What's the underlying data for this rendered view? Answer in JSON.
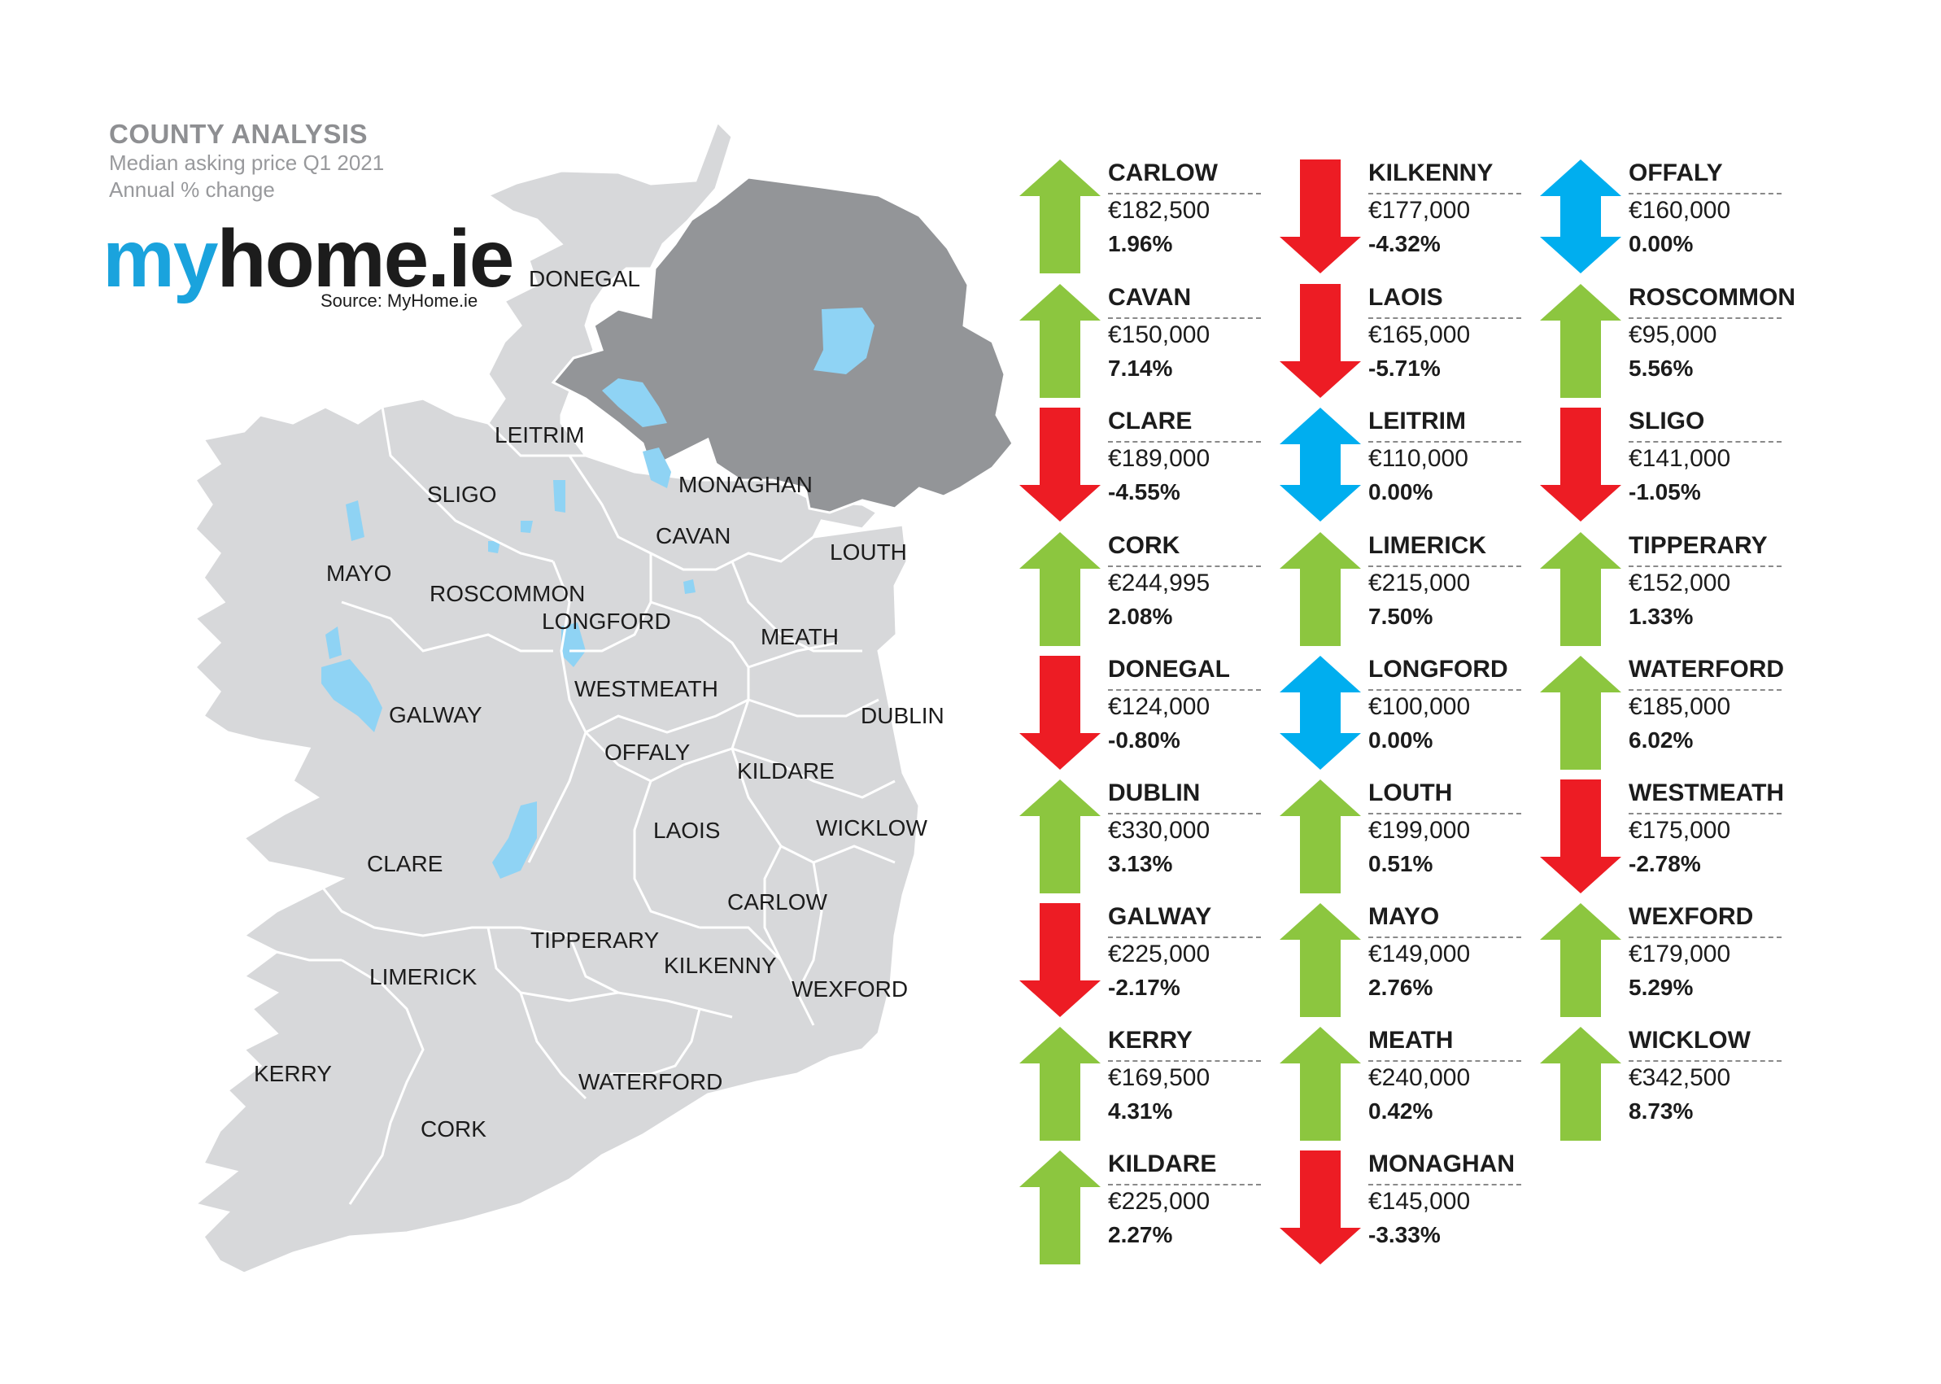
{
  "header": {
    "title": "COUNTY ANALYSIS",
    "subtitle1": "Median asking price Q1 2021",
    "subtitle2": "Annual % change"
  },
  "logo": {
    "my": "my",
    "home": "home",
    "ie": ".ie",
    "source": "Source: MyHome.ie"
  },
  "colors": {
    "up": "#8cc63f",
    "down": "#ed1c24",
    "flat": "#00aeef",
    "land": "#d7d8da",
    "northern_ireland": "#939598",
    "water": "#8fd3f4",
    "border": "#ffffff"
  },
  "map_labels": [
    "DONEGAL",
    "LEITRIM",
    "MONAGHAN",
    "SLIGO",
    "CAVAN",
    "LOUTH",
    "MAYO",
    "ROSCOMMON",
    "LONGFORD",
    "MEATH",
    "WESTMEATH",
    "GALWAY",
    "DUBLIN",
    "OFFALY",
    "KILDARE",
    "CLARE",
    "LAOIS",
    "WICKLOW",
    "CARLOW",
    "TIPPERARY",
    "LIMERICK",
    "KILKENNY",
    "WEXFORD",
    "KERRY",
    "WATERFORD",
    "CORK"
  ],
  "counties": [
    {
      "name": "CARLOW",
      "price": "€182,500",
      "change": "1.96%",
      "trend": "up"
    },
    {
      "name": "CAVAN",
      "price": "€150,000",
      "change": "7.14%",
      "trend": "up"
    },
    {
      "name": "CLARE",
      "price": "€189,000",
      "change": "-4.55%",
      "trend": "down"
    },
    {
      "name": "CORK",
      "price": "€244,995",
      "change": "2.08%",
      "trend": "up"
    },
    {
      "name": "DONEGAL",
      "price": "€124,000",
      "change": "-0.80%",
      "trend": "down"
    },
    {
      "name": "DUBLIN",
      "price": "€330,000",
      "change": "3.13%",
      "trend": "up"
    },
    {
      "name": "GALWAY",
      "price": "€225,000",
      "change": "-2.17%",
      "trend": "down"
    },
    {
      "name": "KERRY",
      "price": "€169,500",
      "change": "4.31%",
      "trend": "up"
    },
    {
      "name": "KILDARE",
      "price": "€225,000",
      "change": "2.27%",
      "trend": "up"
    },
    {
      "name": "KILKENNY",
      "price": "€177,000",
      "change": "-4.32%",
      "trend": "down"
    },
    {
      "name": "LAOIS",
      "price": "€165,000",
      "change": "-5.71%",
      "trend": "down"
    },
    {
      "name": "LEITRIM",
      "price": "€110,000",
      "change": "0.00%",
      "trend": "flat"
    },
    {
      "name": "LIMERICK",
      "price": "€215,000",
      "change": "7.50%",
      "trend": "up"
    },
    {
      "name": "LONGFORD",
      "price": "€100,000",
      "change": "0.00%",
      "trend": "flat"
    },
    {
      "name": "LOUTH",
      "price": "€199,000",
      "change": "0.51%",
      "trend": "up"
    },
    {
      "name": "MAYO",
      "price": "€149,000",
      "change": "2.76%",
      "trend": "up"
    },
    {
      "name": "MEATH",
      "price": "€240,000",
      "change": "0.42%",
      "trend": "up"
    },
    {
      "name": "MONAGHAN",
      "price": "€145,000",
      "change": "-3.33%",
      "trend": "down"
    },
    {
      "name": "OFFALY",
      "price": "€160,000",
      "change": "0.00%",
      "trend": "flat"
    },
    {
      "name": "ROSCOMMON",
      "price": "€95,000",
      "change": "5.56%",
      "trend": "up"
    },
    {
      "name": "SLIGO",
      "price": "€141,000",
      "change": "-1.05%",
      "trend": "down"
    },
    {
      "name": "TIPPERARY",
      "price": "€152,000",
      "change": "1.33%",
      "trend": "up"
    },
    {
      "name": "WATERFORD",
      "price": "€185,000",
      "change": "6.02%",
      "trend": "up"
    },
    {
      "name": "WESTMEATH",
      "price": "€175,000",
      "change": "-2.78%",
      "trend": "down"
    },
    {
      "name": "WEXFORD",
      "price": "€179,000",
      "change": "5.29%",
      "trend": "up"
    },
    {
      "name": "WICKLOW",
      "price": "€342,500",
      "change": "8.73%",
      "trend": "up"
    }
  ]
}
